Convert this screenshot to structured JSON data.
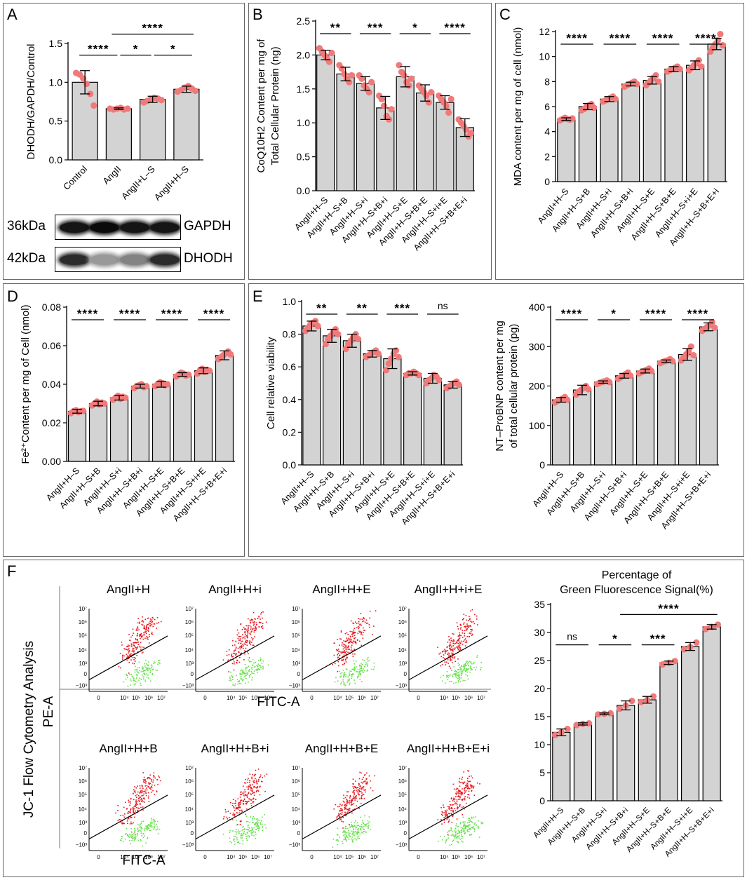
{
  "panels": {
    "A": "A",
    "B": "B",
    "C": "C",
    "D": "D",
    "E": "E",
    "F": "F"
  },
  "western_blot": {
    "rows": [
      {
        "kda": "36kDa",
        "protein": "GAPDH",
        "intensity": [
          0.95,
          1.0,
          0.95,
          0.95
        ]
      },
      {
        "kda": "42kDa",
        "protein": "DHODH",
        "intensity": [
          0.85,
          0.35,
          0.45,
          0.85
        ]
      }
    ]
  },
  "flow": {
    "y_axis_title": "JC-1 Flow Cytometry Analysis",
    "channel_y": "PE-A",
    "channel_x": "FITC-A",
    "row1_titles": [
      "AngII+H",
      "AngII+H+i",
      "AngII+H+E",
      "AngII+H+i+E"
    ],
    "row2_titles": [
      "AngII+H+B",
      "AngII+H+B+i",
      "AngII+H+B+E",
      "AngII+H+B+E+i"
    ],
    "y_ticks": [
      "10⁷",
      "10⁶",
      "10⁵",
      "10⁴",
      "10³",
      "0",
      "−10³"
    ],
    "x_ticks": [
      "0",
      "10⁴",
      "10⁵",
      "10⁶",
      "10⁷"
    ]
  },
  "colors": {
    "bar": "#d3d3d3",
    "point": "#f07a7a",
    "red_cells": "#e8141a",
    "green_cells": "#66e04a"
  },
  "chart_data": [
    {
      "id": "A",
      "type": "bar",
      "title": "",
      "categories": [
        "Control",
        "AngII",
        "AngII+L–S",
        "AngII+H–S"
      ],
      "values": [
        1.0,
        0.66,
        0.78,
        0.91
      ],
      "errors": [
        0.15,
        0.01,
        0.04,
        0.04
      ],
      "points": [
        [
          1.12,
          1.1,
          1.05,
          0.98,
          0.85,
          0.7
        ],
        [
          0.66,
          0.65,
          0.66,
          0.67,
          0.65,
          0.66
        ],
        [
          0.74,
          0.76,
          0.78,
          0.8,
          0.79,
          0.77
        ],
        [
          0.88,
          0.9,
          0.93,
          0.95,
          0.92,
          0.89
        ]
      ],
      "xlabel": "",
      "ylabel": "DHODH/GAPDH/Control",
      "ylim": [
        0,
        1.5
      ],
      "yticks": [
        "0.0",
        "0.5",
        "1.0",
        "1.5"
      ],
      "sig": [
        {
          "from": 0,
          "to": 1,
          "label": "****",
          "level": 1
        },
        {
          "from": 1,
          "to": 2,
          "label": "*",
          "level": 1
        },
        {
          "from": 2,
          "to": 3,
          "label": "*",
          "level": 1
        },
        {
          "from": 1,
          "to": 3,
          "label": "****",
          "level": 2
        }
      ]
    },
    {
      "id": "B",
      "type": "bar",
      "title": "",
      "categories": [
        "AngII+H–S",
        "AngII+H–S+B",
        "AngII+H–S+i",
        "AngII+H–S+B+i",
        "AngII+H–S+E",
        "AngII+H–S+B+E",
        "AngII+H–S+i+E",
        "AngII+H–S+B+E+i"
      ],
      "values": [
        2.0,
        1.72,
        1.58,
        1.22,
        1.68,
        1.44,
        1.3,
        0.93
      ],
      "errors": [
        0.07,
        0.1,
        0.1,
        0.17,
        0.15,
        0.12,
        0.1,
        0.13
      ],
      "points": [
        [
          2.1,
          2.05,
          2.0,
          1.95,
          1.9,
          2.03
        ],
        [
          1.85,
          1.8,
          1.72,
          1.65,
          1.6,
          1.7
        ],
        [
          1.7,
          1.65,
          1.55,
          1.5,
          1.45,
          1.6
        ],
        [
          1.4,
          1.35,
          1.25,
          1.1,
          1.05,
          1.2
        ],
        [
          1.85,
          1.75,
          1.7,
          1.6,
          1.55,
          1.65
        ],
        [
          1.55,
          1.5,
          1.45,
          1.4,
          1.3,
          1.45
        ],
        [
          1.4,
          1.35,
          1.3,
          1.25,
          1.15,
          1.35
        ],
        [
          1.05,
          1.0,
          0.95,
          0.9,
          0.8,
          0.85
        ]
      ],
      "xlabel": "",
      "ylabel": "CoQ10H2 Content per mg of|Total Cellular Protein (ng)",
      "ylim": [
        0,
        2.5
      ],
      "yticks": [
        "0.0",
        "0.5",
        "1.0",
        "1.5",
        "2.0",
        "2.5"
      ],
      "sig": [
        {
          "from": 0,
          "to": 1,
          "label": "**",
          "level": 1
        },
        {
          "from": 2,
          "to": 3,
          "label": "***",
          "level": 1
        },
        {
          "from": 4,
          "to": 5,
          "label": "*",
          "level": 1
        },
        {
          "from": 6,
          "to": 7,
          "label": "****",
          "level": 1
        }
      ]
    },
    {
      "id": "C",
      "type": "bar",
      "title": "",
      "categories": [
        "AngII+H–S",
        "AngII+H–S+B",
        "AngII+H–S+i",
        "AngII+H–S+B+i",
        "AngII+H–S+E",
        "AngII+H–S+B+E",
        "AngII+H–S+i+E",
        "AngII+H–S+B+E+i"
      ],
      "values": [
        5.0,
        6.0,
        6.6,
        7.8,
        8.1,
        9.0,
        9.3,
        11.0
      ],
      "errors": [
        0.1,
        0.25,
        0.2,
        0.15,
        0.3,
        0.2,
        0.35,
        0.45
      ],
      "points": [
        [
          4.9,
          5.0,
          5.1,
          5.0,
          4.95,
          5.05
        ],
        [
          5.7,
          5.8,
          6.0,
          6.1,
          6.2,
          5.9
        ],
        [
          6.4,
          6.5,
          6.6,
          6.7,
          6.8,
          6.6
        ],
        [
          7.6,
          7.7,
          7.8,
          7.9,
          8.0,
          7.8
        ],
        [
          7.7,
          7.9,
          8.1,
          8.3,
          8.5,
          8.0
        ],
        [
          8.8,
          8.9,
          9.0,
          9.1,
          9.2,
          9.0
        ],
        [
          8.9,
          9.1,
          9.3,
          9.5,
          9.7,
          9.2
        ],
        [
          10.4,
          10.7,
          11.0,
          11.3,
          11.8,
          10.9
        ]
      ],
      "xlabel": "",
      "ylabel": "MDA content per mg of cell (nmol)",
      "ylim": [
        0,
        12
      ],
      "yticks": [
        "0",
        "2",
        "4",
        "6",
        "8",
        "10",
        "12"
      ],
      "sig": [
        {
          "from": 0,
          "to": 1,
          "label": "****",
          "level": 1
        },
        {
          "from": 2,
          "to": 3,
          "label": "****",
          "level": 1
        },
        {
          "from": 4,
          "to": 5,
          "label": "****",
          "level": 1
        },
        {
          "from": 6,
          "to": 7,
          "label": "****",
          "level": 1
        }
      ]
    },
    {
      "id": "D",
      "type": "bar",
      "title": "",
      "categories": [
        "AngII+H–S",
        "AngII+H–S+B",
        "AngII+H–S+i",
        "AngII+H–S+B+i",
        "AngII+H–S+E",
        "AngII+H–S+B+E",
        "AngII+H–S+i+E",
        "AngII+H–S+B+E+i"
      ],
      "values": [
        0.026,
        0.03,
        0.033,
        0.039,
        0.04,
        0.045,
        0.047,
        0.055
      ],
      "errors": [
        0.001,
        0.0012,
        0.0012,
        0.001,
        0.0015,
        0.001,
        0.0015,
        0.0023
      ],
      "points": [
        [
          0.025,
          0.026,
          0.0265,
          0.0255,
          0.026,
          0.0262
        ],
        [
          0.029,
          0.03,
          0.031,
          0.0295,
          0.0305,
          0.03
        ],
        [
          0.032,
          0.033,
          0.034,
          0.0325,
          0.0335,
          0.033
        ],
        [
          0.038,
          0.039,
          0.0395,
          0.04,
          0.0385,
          0.039
        ],
        [
          0.039,
          0.04,
          0.041,
          0.0405,
          0.0395,
          0.04
        ],
        [
          0.044,
          0.045,
          0.046,
          0.0455,
          0.0445,
          0.045
        ],
        [
          0.0455,
          0.047,
          0.048,
          0.0465,
          0.0475,
          0.047
        ],
        [
          0.053,
          0.054,
          0.055,
          0.056,
          0.057,
          0.0555
        ]
      ],
      "xlabel": "",
      "ylabel": "Fe²⁺Content per mg of Cell (nmol)",
      "ylim": [
        0,
        0.08
      ],
      "yticks": [
        "0.00",
        "0.02",
        "0.04",
        "0.06",
        "0.08"
      ],
      "sig": [
        {
          "from": 0,
          "to": 1,
          "label": "****",
          "level": 1
        },
        {
          "from": 2,
          "to": 3,
          "label": "****",
          "level": 1
        },
        {
          "from": 4,
          "to": 5,
          "label": "****",
          "level": 1
        },
        {
          "from": 6,
          "to": 7,
          "label": "****",
          "level": 1
        }
      ]
    },
    {
      "id": "E1",
      "type": "bar",
      "title": "",
      "categories": [
        "AngII+H–S",
        "AngII+H–S+B",
        "AngII+H–S+i",
        "AngII+H–S+B+i",
        "AngII+H–S+E",
        "AngII+H–S+B+E",
        "AngII+H–S+i+E",
        "AngII+H–S+B+E+i"
      ],
      "values": [
        0.85,
        0.79,
        0.76,
        0.68,
        0.65,
        0.56,
        0.53,
        0.49
      ],
      "errors": [
        0.03,
        0.04,
        0.04,
        0.02,
        0.06,
        0.01,
        0.03,
        0.02
      ],
      "points": [
        [
          0.82,
          0.84,
          0.86,
          0.87,
          0.88,
          0.85
        ],
        [
          0.74,
          0.77,
          0.79,
          0.81,
          0.83,
          0.8
        ],
        [
          0.71,
          0.74,
          0.76,
          0.78,
          0.8,
          0.77
        ],
        [
          0.66,
          0.67,
          0.68,
          0.69,
          0.7,
          0.68
        ],
        [
          0.58,
          0.62,
          0.65,
          0.68,
          0.7,
          0.66
        ],
        [
          0.55,
          0.56,
          0.56,
          0.57,
          0.56,
          0.55
        ],
        [
          0.5,
          0.52,
          0.53,
          0.55,
          0.54,
          0.52
        ],
        [
          0.47,
          0.48,
          0.49,
          0.5,
          0.51,
          0.49
        ]
      ],
      "xlabel": "",
      "ylabel": "Cell relative viability",
      "ylim": [
        0,
        1.0
      ],
      "yticks": [
        "0.0",
        "0.2",
        "0.4",
        "0.6",
        "0.8",
        "1.0"
      ],
      "sig": [
        {
          "from": 0,
          "to": 1,
          "label": "**",
          "level": 1
        },
        {
          "from": 2,
          "to": 3,
          "label": "**",
          "level": 1
        },
        {
          "from": 4,
          "to": 5,
          "label": "***",
          "level": 1
        },
        {
          "from": 6,
          "to": 7,
          "label": "ns",
          "level": 1
        }
      ]
    },
    {
      "id": "E2",
      "type": "bar",
      "title": "",
      "categories": [
        "AngII+H–S",
        "AngII+H–S+B",
        "AngII+H–S+i",
        "AngII+H–S+B+i",
        "AngII+H–S+E",
        "AngII+H–S+B+E",
        "AngII+H–S+i+E",
        "AngII+H–S+B+E+i"
      ],
      "values": [
        165,
        190,
        210,
        226,
        238,
        263,
        280,
        350
      ],
      "errors": [
        6,
        12,
        3,
        6,
        5,
        3,
        15,
        10
      ],
      "points": [
        [
          158,
          162,
          165,
          168,
          172,
          165
        ],
        [
          178,
          185,
          190,
          195,
          200,
          192
        ],
        [
          205,
          208,
          210,
          212,
          214,
          210
        ],
        [
          218,
          222,
          226,
          230,
          234,
          226
        ],
        [
          232,
          235,
          238,
          241,
          244,
          238
        ],
        [
          258,
          261,
          263,
          265,
          268,
          263
        ],
        [
          265,
          272,
          280,
          288,
          300,
          278
        ],
        [
          340,
          345,
          350,
          355,
          362,
          348
        ]
      ],
      "xlabel": "",
      "ylabel": "NT–ProBNP content per mg|of total cellular protein (pg)",
      "ylim": [
        0,
        400
      ],
      "yticks": [
        "0",
        "100",
        "200",
        "300",
        "400"
      ],
      "sig": [
        {
          "from": 0,
          "to": 1,
          "label": "****",
          "level": 1
        },
        {
          "from": 2,
          "to": 3,
          "label": "*",
          "level": 1
        },
        {
          "from": 4,
          "to": 5,
          "label": "****",
          "level": 1
        },
        {
          "from": 6,
          "to": 7,
          "label": "****",
          "level": 1
        }
      ]
    },
    {
      "id": "F",
      "type": "bar",
      "title": "Percentage of|Green Fluorescence Signal(%)",
      "categories": [
        "AngII+H–S",
        "AngII+H–S+B",
        "AngII+H–S+i",
        "AngII+H–S+B+i",
        "AngII+H–S+E",
        "AngII+H–S+B+E",
        "AngII+H–S+i+E",
        "AngII+H–S+B+E+i"
      ],
      "values": [
        12.2,
        13.7,
        15.5,
        17.0,
        18.0,
        24.6,
        27.5,
        31.0
      ],
      "errors": [
        0.6,
        0.2,
        0.15,
        0.8,
        0.6,
        0.3,
        0.7,
        0.4
      ],
      "points": [
        [
          11.7,
          12.2,
          12.8
        ],
        [
          13.5,
          13.7,
          13.8
        ],
        [
          15.4,
          15.5,
          15.6
        ],
        [
          16.4,
          17.0,
          17.8
        ],
        [
          17.6,
          18.0,
          18.6
        ],
        [
          24.3,
          24.6,
          24.9
        ],
        [
          27.0,
          27.4,
          28.2
        ],
        [
          30.6,
          31.0,
          31.4
        ]
      ],
      "xlabel": "",
      "ylabel": "",
      "ylim": [
        0,
        35
      ],
      "yticks": [
        "0",
        "5",
        "10",
        "15",
        "20",
        "25",
        "30",
        "35"
      ],
      "sig": [
        {
          "from": 0,
          "to": 1,
          "label": "ns",
          "level": 1
        },
        {
          "from": 2,
          "to": 3,
          "label": "*",
          "level": 1
        },
        {
          "from": 4,
          "to": 5,
          "label": "***",
          "level": 1
        },
        {
          "from": 3,
          "to": 7,
          "label": "****",
          "level": 2
        }
      ]
    }
  ]
}
